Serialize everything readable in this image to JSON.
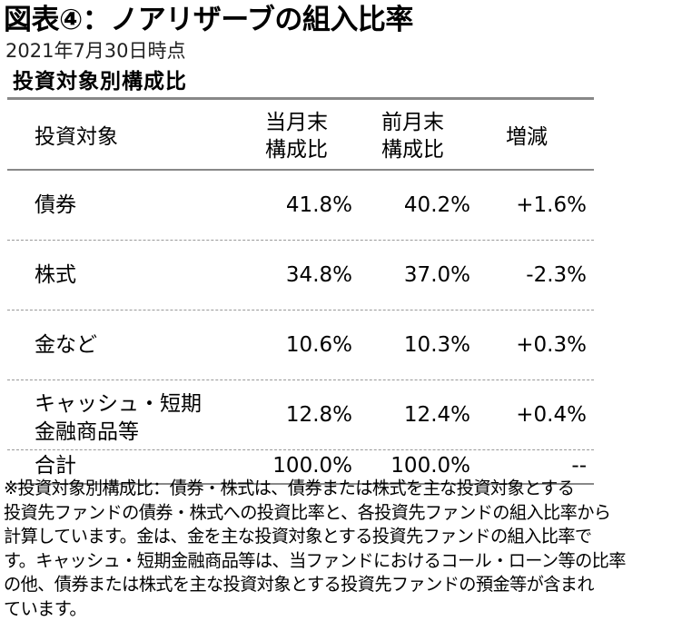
{
  "title": "図表④：ノアリザーブの組入比率",
  "date": "2021年7月30日時点",
  "subtitle": "投資対象別構成比",
  "table": {
    "headers": {
      "name": "投資対象",
      "current_line1": "当月末",
      "current_line2": "構成比",
      "previous_line1": "前月末",
      "previous_line2": "構成比",
      "change": "増減"
    },
    "rows": [
      {
        "name": "債券",
        "name_line2": "",
        "current": "41.8%",
        "previous": "40.2%",
        "change": "+1.6%"
      },
      {
        "name": "株式",
        "name_line2": "",
        "current": "34.8%",
        "previous": "37.0%",
        "change": "-2.3%"
      },
      {
        "name": "金など",
        "name_line2": "",
        "current": "10.6%",
        "previous": "10.3%",
        "change": "+0.3%"
      },
      {
        "name": "キャッシュ・短期",
        "name_line2": "金融商品等",
        "current": "12.8%",
        "previous": "12.4%",
        "change": "+0.4%"
      }
    ],
    "total": {
      "name": "合計",
      "current": "100.0%",
      "previous": "100.0%",
      "change": "--"
    }
  },
  "note_lines": [
    "※投資対象別構成比：債券・株式は、債券または株式を主な投資対象とする",
    "投資先ファンドの債券・株式への投資比率と、各投資先ファンドの組入比率から",
    "計算しています。金は、金を主な投資対象とする投資先ファンドの組入比率で",
    "す。キャッシュ・短期金融商品等は、当ファンドにおけるコール・ローン等の比率",
    "の他、債券または株式を主な投資対象とする投資先ファンドの預金等が含まれ",
    "ています。"
  ]
}
